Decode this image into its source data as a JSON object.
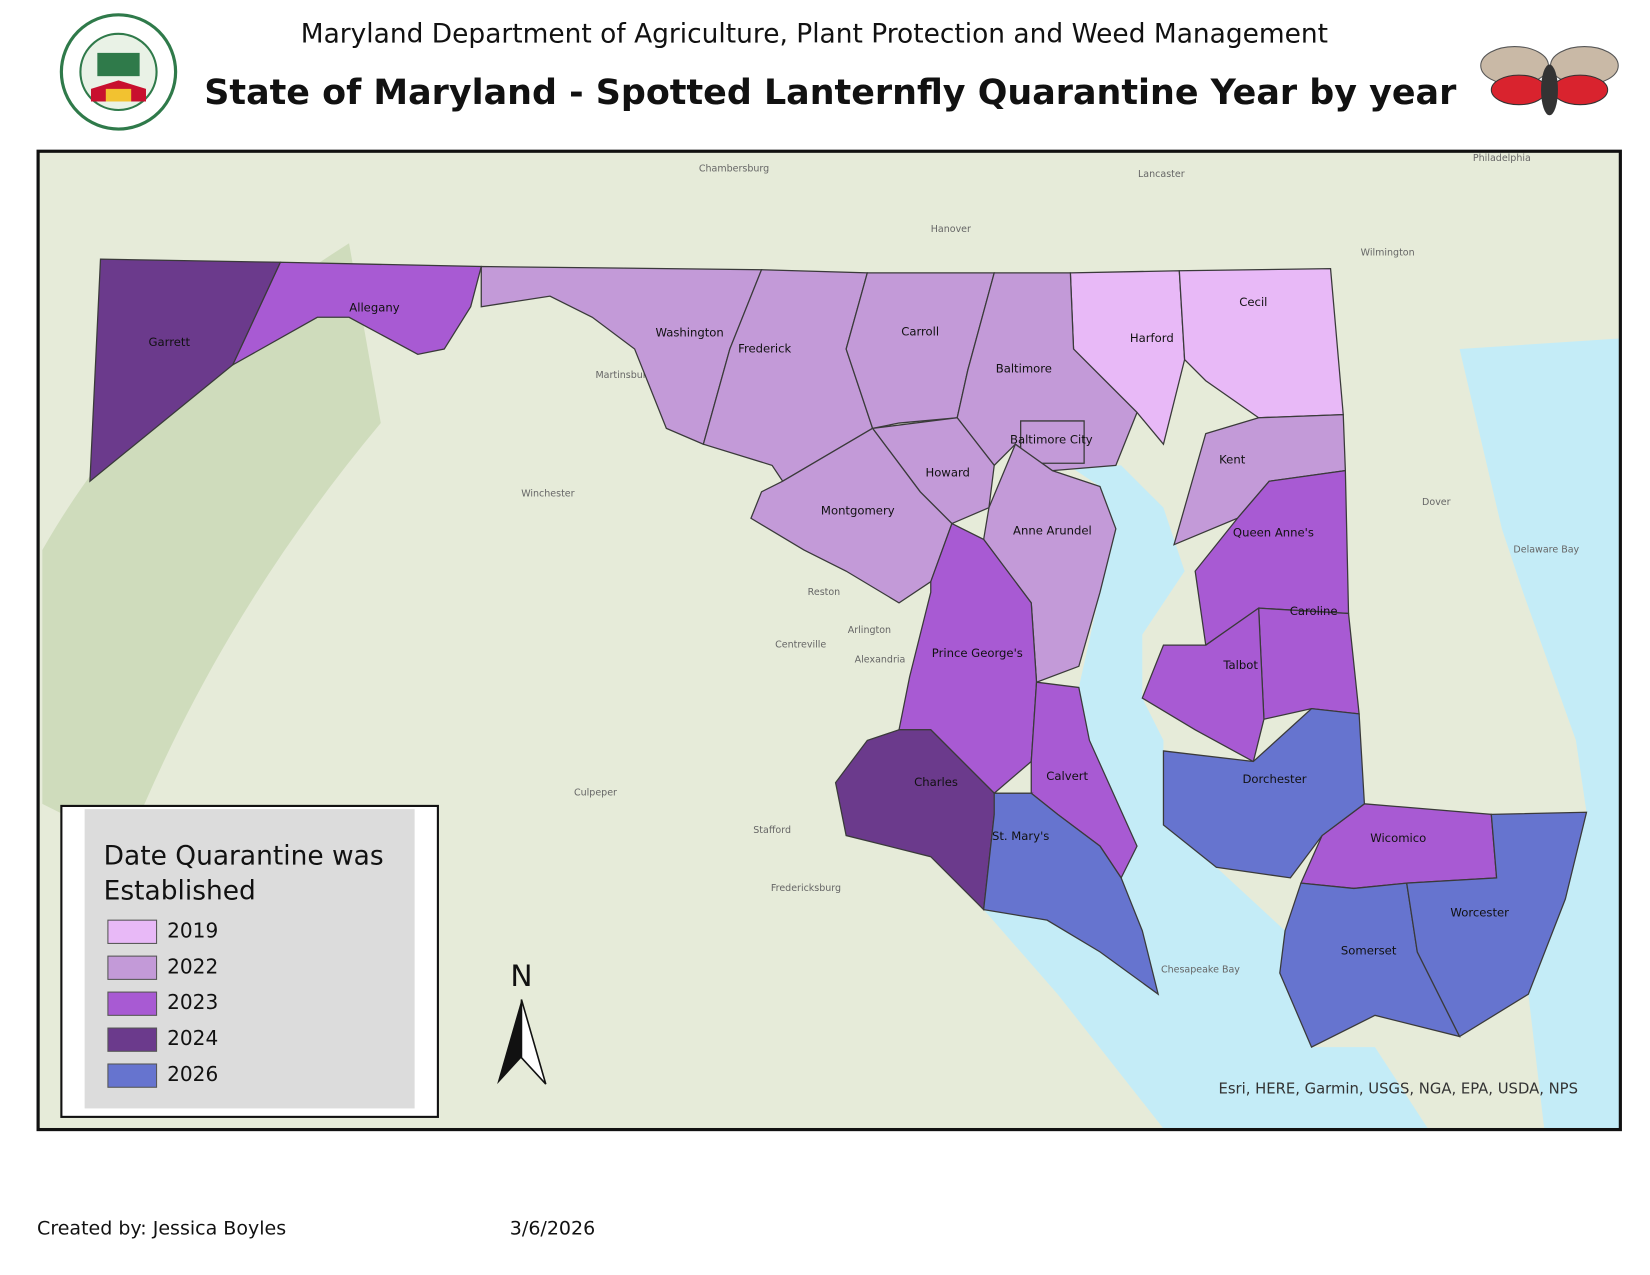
{
  "header": {
    "subtitle": "Maryland Department of Agriculture, Plant Protection and Weed Management",
    "title": "State of Maryland - Spotted Lanternfly Quarantine Year by year"
  },
  "legend": {
    "title": "Date Quarantine was Established",
    "items": [
      {
        "label": "2019",
        "color": "#e8b9f7",
        "counties": [
          "Harford",
          "Cecil"
        ]
      },
      {
        "label": "2022",
        "color": "#c39ad8",
        "counties": [
          "Washington",
          "Frederick",
          "Carroll",
          "Baltimore",
          "Baltimore City",
          "Howard",
          "Montgomery",
          "Anne Arundel",
          "Kent"
        ]
      },
      {
        "label": "2023",
        "color": "#a85ad3",
        "counties": [
          "Allegany",
          "Prince George's",
          "Calvert",
          "Queen Anne's",
          "Caroline",
          "Talbot",
          "Wicomico"
        ]
      },
      {
        "label": "2024",
        "color": "#6b3a8c",
        "counties": [
          "Garrett",
          "Charles"
        ]
      },
      {
        "label": "2026",
        "color": "#6674cf",
        "counties": [
          "St. Mary's",
          "Dorchester",
          "Somerset",
          "Worcester"
        ]
      }
    ]
  },
  "basemap": {
    "places": [
      "Philadelphia",
      "Wilmington",
      "Dover",
      "Delaware Bay",
      "Chesapeake Bay",
      "Chambersburg",
      "Hanover",
      "Lancaster",
      "Martinsburg",
      "Winchester",
      "Fredericksburg",
      "Alexandria",
      "Arlington",
      "Reston",
      "Centreville",
      "Culpeper",
      "Stafford"
    ],
    "attribution": "Esri, HERE, Garmin, USGS, NGA, EPA, USDA, NPS",
    "north": "N"
  },
  "footer": {
    "author": "Created by: Jessica Boyles",
    "date": "3/6/2026"
  }
}
